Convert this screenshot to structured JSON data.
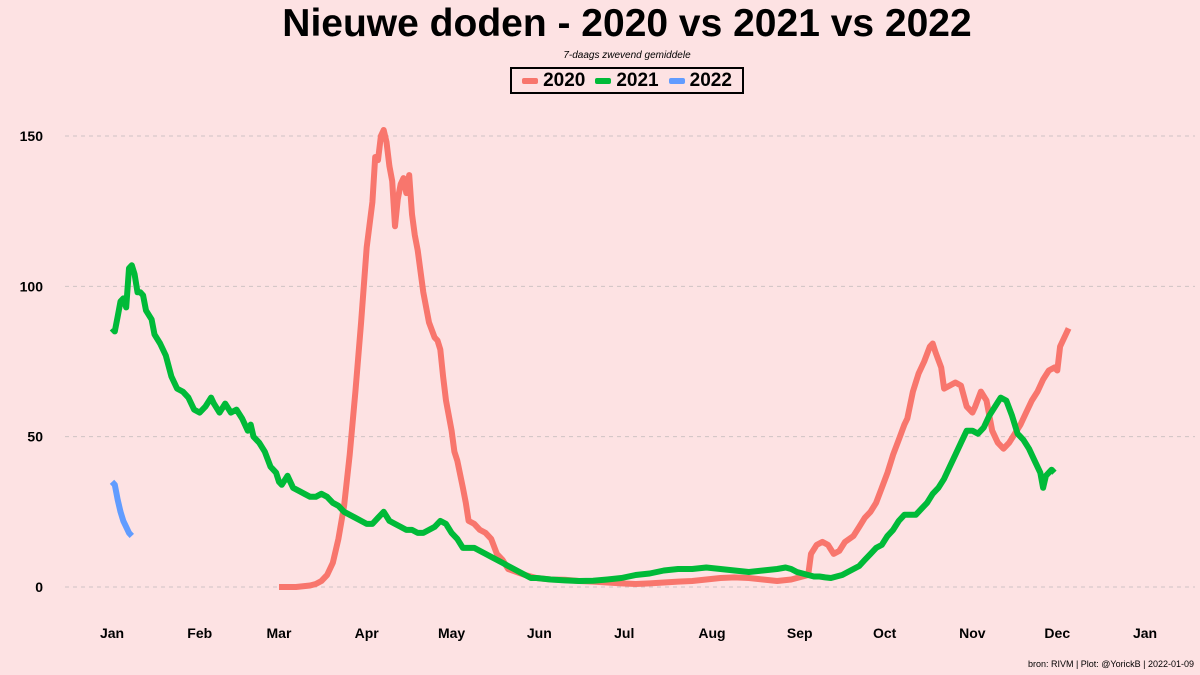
{
  "chart_data": {
    "type": "line",
    "title": "Nieuwe doden - 2020 vs 2021 vs 2022",
    "subtitle": "7-daags zwevend gemiddele",
    "xlabel": "",
    "ylabel": "",
    "x_unit": "day of year (Jan 1 = 0)",
    "xlim": [
      0,
      365
    ],
    "ylim": [
      0,
      150
    ],
    "y_ticks": [
      0,
      50,
      100,
      150
    ],
    "x_ticks": [
      {
        "label": "Jan",
        "x": 0
      },
      {
        "label": "Feb",
        "x": 31
      },
      {
        "label": "Mar",
        "x": 59
      },
      {
        "label": "Apr",
        "x": 90
      },
      {
        "label": "May",
        "x": 120
      },
      {
        "label": "Jun",
        "x": 151
      },
      {
        "label": "Jul",
        "x": 181
      },
      {
        "label": "Aug",
        "x": 212
      },
      {
        "label": "Sep",
        "x": 243
      },
      {
        "label": "Oct",
        "x": 273
      },
      {
        "label": "Nov",
        "x": 304
      },
      {
        "label": "Dec",
        "x": 334
      },
      {
        "label": "Jan",
        "x": 365
      }
    ],
    "grid": "horizontal dashed",
    "legend_position": "top-center",
    "series": [
      {
        "name": "2020",
        "color": "#f8766d",
        "points": [
          [
            59,
            0
          ],
          [
            65,
            0
          ],
          [
            70,
            0.5
          ],
          [
            72,
            1
          ],
          [
            74,
            2
          ],
          [
            76,
            4
          ],
          [
            78,
            8
          ],
          [
            80,
            16
          ],
          [
            82,
            27
          ],
          [
            84,
            44
          ],
          [
            86,
            65
          ],
          [
            88,
            88
          ],
          [
            90,
            113
          ],
          [
            92,
            128
          ],
          [
            93,
            143
          ],
          [
            94,
            142
          ],
          [
            95,
            150
          ],
          [
            96,
            152
          ],
          [
            97,
            148
          ],
          [
            98,
            140
          ],
          [
            99,
            135
          ],
          [
            100,
            120
          ],
          [
            101,
            129
          ],
          [
            102,
            134
          ],
          [
            103,
            136
          ],
          [
            104,
            131
          ],
          [
            105,
            137
          ],
          [
            106,
            124
          ],
          [
            107,
            117
          ],
          [
            108,
            112
          ],
          [
            110,
            98
          ],
          [
            112,
            88
          ],
          [
            114,
            83
          ],
          [
            115,
            82
          ],
          [
            116,
            79
          ],
          [
            117,
            70
          ],
          [
            118,
            62
          ],
          [
            120,
            52
          ],
          [
            121,
            45
          ],
          [
            122,
            42
          ],
          [
            124,
            33
          ],
          [
            125,
            28
          ],
          [
            126,
            22
          ],
          [
            128,
            21
          ],
          [
            130,
            19
          ],
          [
            132,
            18
          ],
          [
            134,
            16
          ],
          [
            136,
            11
          ],
          [
            138,
            9
          ],
          [
            140,
            6
          ],
          [
            143,
            5
          ],
          [
            146,
            4
          ],
          [
            150,
            3
          ],
          [
            155,
            2.5
          ],
          [
            160,
            2.4
          ],
          [
            165,
            2
          ],
          [
            170,
            1.8
          ],
          [
            175,
            1.5
          ],
          [
            180,
            1.2
          ],
          [
            185,
            1
          ],
          [
            190,
            1.2
          ],
          [
            195,
            1.5
          ],
          [
            200,
            1.8
          ],
          [
            205,
            2
          ],
          [
            210,
            2.5
          ],
          [
            215,
            3
          ],
          [
            220,
            3.2
          ],
          [
            225,
            3
          ],
          [
            230,
            2.5
          ],
          [
            235,
            2
          ],
          [
            240,
            2.5
          ],
          [
            244,
            3.5
          ],
          [
            246,
            4
          ],
          [
            247,
            11
          ],
          [
            249,
            14
          ],
          [
            251,
            15
          ],
          [
            253,
            14
          ],
          [
            255,
            11
          ],
          [
            257,
            12
          ],
          [
            259,
            15
          ],
          [
            262,
            17
          ],
          [
            264,
            20
          ],
          [
            266,
            23
          ],
          [
            268,
            25
          ],
          [
            270,
            28
          ],
          [
            272,
            33
          ],
          [
            274,
            38
          ],
          [
            276,
            44
          ],
          [
            278,
            49
          ],
          [
            280,
            54
          ],
          [
            281,
            56
          ],
          [
            283,
            65
          ],
          [
            285,
            71
          ],
          [
            287,
            75
          ],
          [
            289,
            80
          ],
          [
            290,
            81
          ],
          [
            291,
            78
          ],
          [
            293,
            73
          ],
          [
            294,
            66
          ],
          [
            296,
            67
          ],
          [
            298,
            68
          ],
          [
            300,
            67
          ],
          [
            302,
            60
          ],
          [
            304,
            58
          ],
          [
            305,
            60
          ],
          [
            307,
            65
          ],
          [
            309,
            62
          ],
          [
            311,
            52
          ],
          [
            313,
            48
          ],
          [
            315,
            46
          ],
          [
            317,
            48
          ],
          [
            319,
            51
          ],
          [
            321,
            54
          ],
          [
            323,
            58
          ],
          [
            325,
            62
          ],
          [
            327,
            65
          ],
          [
            329,
            69
          ],
          [
            331,
            72
          ],
          [
            333,
            73
          ],
          [
            334,
            72
          ],
          [
            335,
            80
          ],
          [
            337,
            84
          ],
          [
            338,
            86
          ]
        ]
      },
      {
        "name": "2021",
        "color": "#00ba38",
        "points": [
          [
            0,
            86
          ],
          [
            1,
            85
          ],
          [
            2,
            90
          ],
          [
            3,
            95
          ],
          [
            4,
            96
          ],
          [
            5,
            93
          ],
          [
            6,
            106
          ],
          [
            7,
            107
          ],
          [
            8,
            104
          ],
          [
            9,
            98
          ],
          [
            10,
            98
          ],
          [
            11,
            97
          ],
          [
            12,
            92
          ],
          [
            14,
            89
          ],
          [
            15,
            84
          ],
          [
            17,
            81
          ],
          [
            19,
            77
          ],
          [
            21,
            70
          ],
          [
            23,
            66
          ],
          [
            25,
            65
          ],
          [
            27,
            63
          ],
          [
            29,
            59
          ],
          [
            31,
            58
          ],
          [
            33,
            60
          ],
          [
            35,
            63
          ],
          [
            36,
            61
          ],
          [
            38,
            58
          ],
          [
            40,
            61
          ],
          [
            42,
            58
          ],
          [
            44,
            59
          ],
          [
            46,
            56
          ],
          [
            48,
            52
          ],
          [
            49,
            54
          ],
          [
            50,
            50
          ],
          [
            52,
            48
          ],
          [
            54,
            45
          ],
          [
            56,
            40
          ],
          [
            58,
            38
          ],
          [
            59,
            35
          ],
          [
            60,
            34
          ],
          [
            62,
            37
          ],
          [
            64,
            33
          ],
          [
            66,
            32
          ],
          [
            68,
            31
          ],
          [
            70,
            30
          ],
          [
            72,
            30
          ],
          [
            74,
            31
          ],
          [
            76,
            30
          ],
          [
            78,
            28
          ],
          [
            80,
            27
          ],
          [
            82,
            25
          ],
          [
            84,
            24
          ],
          [
            86,
            23
          ],
          [
            88,
            22
          ],
          [
            90,
            21
          ],
          [
            92,
            21
          ],
          [
            94,
            23
          ],
          [
            96,
            25
          ],
          [
            98,
            22
          ],
          [
            100,
            21
          ],
          [
            102,
            20
          ],
          [
            104,
            19
          ],
          [
            106,
            19
          ],
          [
            108,
            18
          ],
          [
            110,
            18
          ],
          [
            112,
            19
          ],
          [
            114,
            20
          ],
          [
            116,
            22
          ],
          [
            118,
            21
          ],
          [
            120,
            18
          ],
          [
            122,
            16
          ],
          [
            124,
            13
          ],
          [
            126,
            13
          ],
          [
            128,
            13
          ],
          [
            130,
            12
          ],
          [
            132,
            11
          ],
          [
            134,
            10
          ],
          [
            136,
            9
          ],
          [
            138,
            8
          ],
          [
            140,
            7
          ],
          [
            142,
            6
          ],
          [
            144,
            5
          ],
          [
            146,
            4
          ],
          [
            148,
            3
          ],
          [
            150,
            3
          ],
          [
            155,
            2.5
          ],
          [
            160,
            2.2
          ],
          [
            165,
            2
          ],
          [
            170,
            2.1
          ],
          [
            175,
            2.5
          ],
          [
            180,
            3
          ],
          [
            185,
            4
          ],
          [
            190,
            4.5
          ],
          [
            195,
            5.5
          ],
          [
            200,
            6
          ],
          [
            205,
            6
          ],
          [
            210,
            6.5
          ],
          [
            215,
            6
          ],
          [
            220,
            5.5
          ],
          [
            225,
            5
          ],
          [
            230,
            5.5
          ],
          [
            235,
            6
          ],
          [
            238,
            6.5
          ],
          [
            240,
            6
          ],
          [
            242,
            5
          ],
          [
            244,
            4.5
          ],
          [
            246,
            4
          ],
          [
            248,
            3.5
          ],
          [
            250,
            3.5
          ],
          [
            252,
            3.2
          ],
          [
            254,
            3
          ],
          [
            256,
            3.5
          ],
          [
            258,
            4
          ],
          [
            260,
            5
          ],
          [
            262,
            6
          ],
          [
            264,
            7
          ],
          [
            266,
            9
          ],
          [
            268,
            11
          ],
          [
            270,
            13
          ],
          [
            272,
            14
          ],
          [
            274,
            17
          ],
          [
            276,
            19
          ],
          [
            278,
            22
          ],
          [
            280,
            24
          ],
          [
            282,
            24
          ],
          [
            284,
            24
          ],
          [
            286,
            26
          ],
          [
            288,
            28
          ],
          [
            290,
            31
          ],
          [
            292,
            33
          ],
          [
            294,
            36
          ],
          [
            296,
            40
          ],
          [
            298,
            44
          ],
          [
            300,
            48
          ],
          [
            302,
            52
          ],
          [
            304,
            52
          ],
          [
            306,
            51
          ],
          [
            308,
            53
          ],
          [
            310,
            57
          ],
          [
            312,
            60
          ],
          [
            314,
            63
          ],
          [
            316,
            62
          ],
          [
            318,
            57
          ],
          [
            320,
            51
          ],
          [
            322,
            49
          ],
          [
            324,
            46
          ],
          [
            326,
            42
          ],
          [
            328,
            38
          ],
          [
            329,
            33
          ],
          [
            330,
            37
          ],
          [
            331,
            38
          ],
          [
            332,
            39
          ],
          [
            333,
            38
          ]
        ]
      },
      {
        "name": "2022",
        "color": "#619cff",
        "points": [
          [
            0,
            35
          ],
          [
            1,
            34
          ],
          [
            2,
            29
          ],
          [
            3,
            25
          ],
          [
            4,
            22
          ],
          [
            5,
            20
          ],
          [
            6,
            18
          ],
          [
            7,
            17
          ]
        ]
      }
    ]
  },
  "footer": {
    "caption": "bron: RIVM  | Plot: @YorickB |  2022-01-09"
  }
}
